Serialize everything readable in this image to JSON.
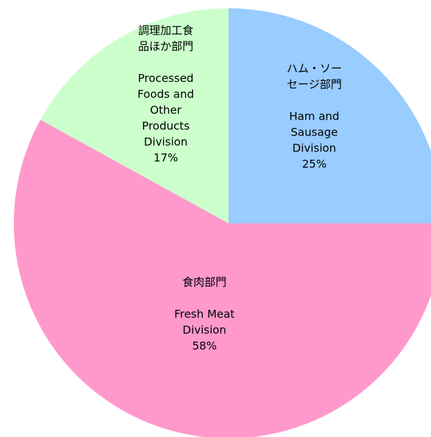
{
  "chart_data": {
    "type": "pie",
    "categories": [
      {
        "ja": [
          "ハム・ソー",
          "セージ部門"
        ],
        "en": [
          "Ham and",
          "Sausage",
          "Division"
        ]
      },
      {
        "ja": [
          "食肉部門"
        ],
        "en": [
          "Fresh Meat",
          "Division"
        ]
      },
      {
        "ja": [
          "調理加工食",
          "品ほか部門"
        ],
        "en": [
          "Processed",
          "Foods and",
          "Other",
          "Products",
          "Division"
        ]
      }
    ],
    "values": [
      25,
      58,
      17
    ],
    "value_labels": [
      "25%",
      "58%",
      "17%"
    ],
    "colors": [
      "#99ccff",
      "#ff99cc",
      "#ccffcc"
    ]
  }
}
